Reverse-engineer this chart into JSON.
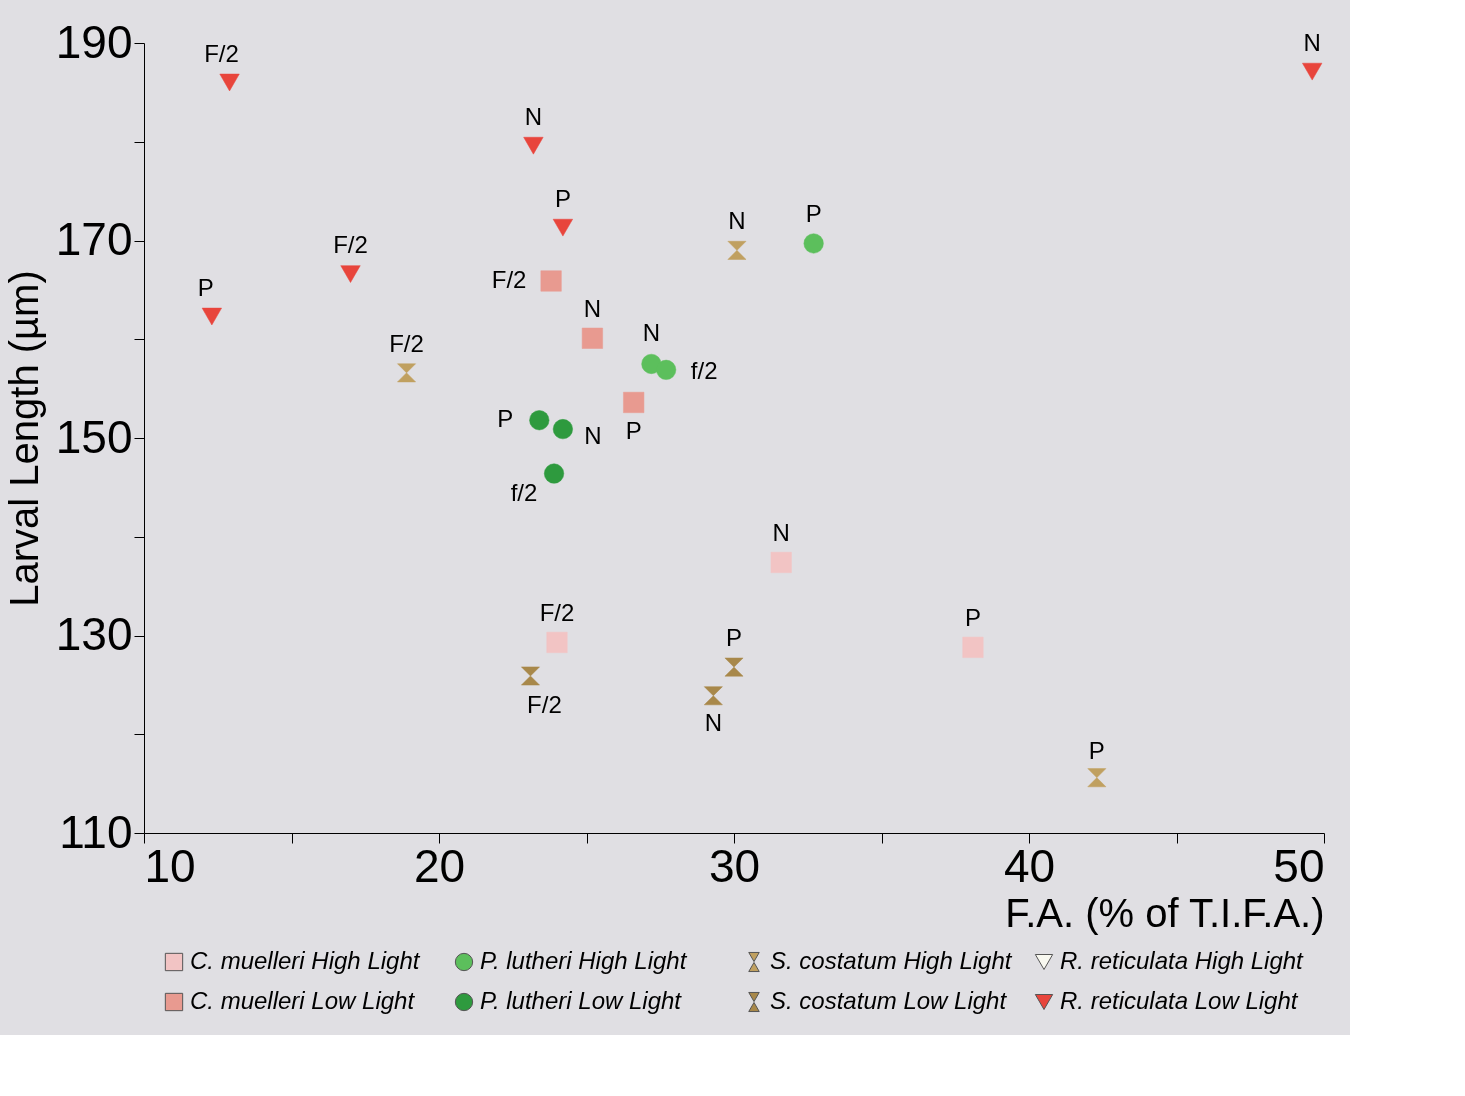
{
  "chart_data": {
    "type": "scatter",
    "xlabel": "F.A. (% of T.I.F.A.)",
    "ylabel": "Larval Length  (µm)",
    "xlim": [
      10,
      50
    ],
    "xticks": [
      10,
      {
        "value": 15,
        "label": null
      },
      20,
      {
        "value": 25,
        "label": null
      },
      30,
      {
        "value": 35,
        "label": null
      },
      40,
      {
        "value": 45,
        "label": null
      },
      50
    ],
    "ylim": [
      110,
      190
    ],
    "yticks": [
      110,
      {
        "value": 120,
        "label": null
      },
      130,
      {
        "value": 140,
        "label": null
      },
      150,
      {
        "value": 160,
        "label": null
      },
      170,
      {
        "value": 180,
        "label": null
      },
      190
    ],
    "grid": false,
    "legend": "bottom",
    "series": [
      {
        "name": "C. muelleri High Light",
        "color": "#f2c4c4",
        "marker": "square",
        "x": [
          24.0,
          31.6,
          38.1
        ],
        "values": [
          129.3,
          137.4,
          128.8
        ]
      },
      {
        "name": "C. muelleri Low Light",
        "color": "#e89a90",
        "marker": "square",
        "x": [
          23.8,
          25.2,
          26.6
        ],
        "values": [
          165.9,
          160.1,
          153.6
        ]
      },
      {
        "name": "P. lutheri High Light",
        "color": "#5cbf5c",
        "marker": "circle",
        "x": [
          32.7,
          27.2,
          27.7
        ],
        "values": [
          169.7,
          157.5,
          156.9
        ]
      },
      {
        "name": "P. lutheri Low Light",
        "color": "#2e9a3e",
        "marker": "circle",
        "x": [
          23.4,
          24.2,
          23.9
        ],
        "values": [
          151.8,
          150.9,
          146.4
        ]
      },
      {
        "name": "S. costatum High Light",
        "color": "#c0a060",
        "x": [
          30.1,
          18.9,
          42.3
        ],
        "values": [
          169.0,
          156.6,
          115.6
        ]
      },
      {
        "name": "S. costatum Low Light",
        "color": "#a8884a",
        "x": [
          23.1,
          30.0,
          29.3
        ],
        "values": [
          125.9,
          126.8,
          123.9
        ]
      },
      {
        "name": "R. reticulata High Light",
        "color": "#f8f8f0",
        "marker": "triangle"
      },
      {
        "name": "R. reticulata Low Light",
        "color": "#e8453c",
        "marker": "triangle",
        "x": [
          12.9,
          23.2,
          24.2,
          17.0,
          12.3,
          49.6
        ],
        "values": [
          186.0,
          179.6,
          171.3,
          166.6,
          162.3,
          187.1
        ]
      }
    ],
    "annotations": [
      {
        "text": "F/2",
        "x": 24.0,
        "y": 129.3
      },
      {
        "text": "N",
        "x": 31.6,
        "y": 137.4
      },
      {
        "text": "P",
        "x": 38.1,
        "y": 128.8
      },
      {
        "text": "F/2",
        "x": 23.8,
        "y": 165.9
      },
      {
        "text": "N",
        "x": 25.2,
        "y": 160.1
      },
      {
        "text": "P",
        "x": 26.6,
        "y": 153.6
      },
      {
        "text": "P",
        "x": 32.7,
        "y": 169.7
      },
      {
        "text": "N",
        "x": 27.2,
        "y": 157.5
      },
      {
        "text": "f/2",
        "x": 27.7,
        "y": 156.9
      },
      {
        "text": "P",
        "x": 23.4,
        "y": 151.8
      },
      {
        "text": "N",
        "x": 24.2,
        "y": 150.9
      },
      {
        "text": "f/2",
        "x": 23.9,
        "y": 146.4
      },
      {
        "text": "N",
        "x": 30.1,
        "y": 169.0
      },
      {
        "text": "F/2",
        "x": 18.9,
        "y": 156.6
      },
      {
        "text": "P",
        "x": 42.3,
        "y": 115.6
      },
      {
        "text": "F/2",
        "x": 23.1,
        "y": 125.9
      },
      {
        "text": "P",
        "x": 30.0,
        "y": 126.8
      },
      {
        "text": "N",
        "x": 29.3,
        "y": 123.9
      },
      {
        "text": "F/2",
        "x": 12.9,
        "y": 186.0
      },
      {
        "text": "N",
        "x": 23.2,
        "y": 179.6
      },
      {
        "text": "P",
        "x": 24.2,
        "y": 171.3
      },
      {
        "text": "F/2",
        "x": 17.0,
        "y": 166.6
      },
      {
        "text": "P",
        "x": 12.3,
        "y": 162.3
      },
      {
        "text": "N",
        "x": 49.6,
        "y": 187.1
      }
    ]
  }
}
